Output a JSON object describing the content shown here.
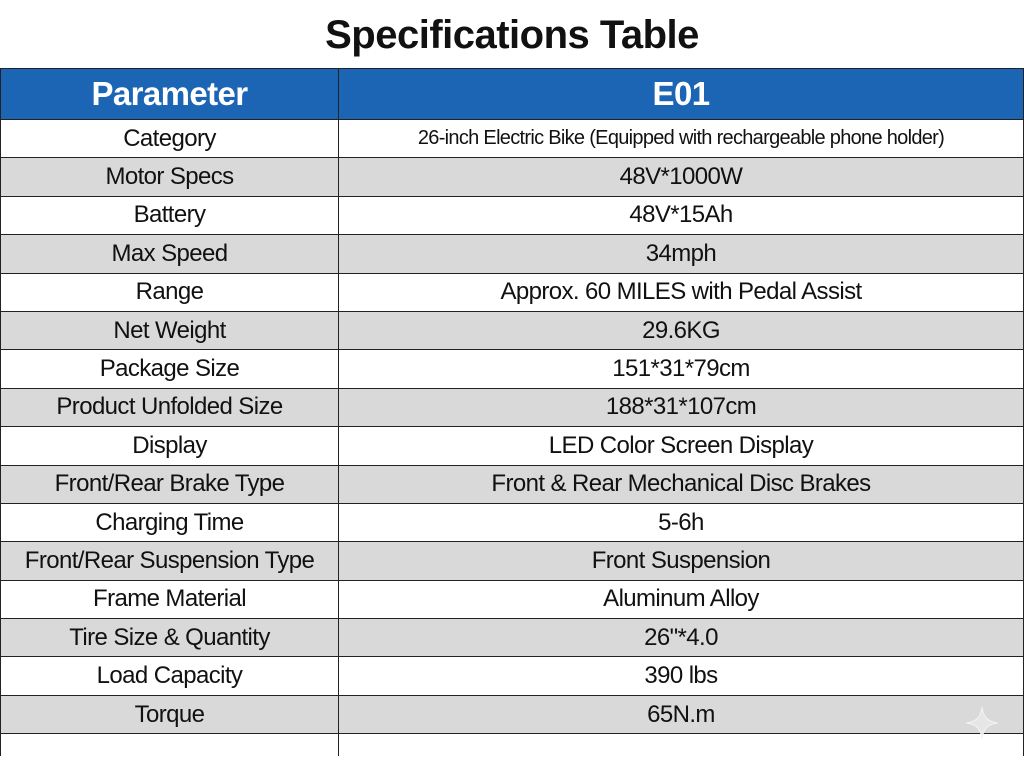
{
  "title": "Specifications Table",
  "table": {
    "header": [
      "Parameter",
      "E01"
    ],
    "rows": [
      [
        "Category",
        "26-inch Electric Bike (Equipped with rechargeable phone holder)"
      ],
      [
        "Motor Specs",
        "48V*1000W"
      ],
      [
        "Battery",
        "48V*15Ah"
      ],
      [
        "Max Speed",
        "34mph"
      ],
      [
        "Range",
        "Approx. 60 MILES with Pedal Assist"
      ],
      [
        "Net Weight",
        "29.6KG"
      ],
      [
        "Package Size",
        "151*31*79cm"
      ],
      [
        "Product Unfolded Size",
        "188*31*107cm"
      ],
      [
        "Display",
        "LED Color Screen Display"
      ],
      [
        "Front/Rear Brake Type",
        "Front & Rear Mechanical Disc Brakes"
      ],
      [
        "Charging Time",
        "5-6h"
      ],
      [
        "Front/Rear Suspension Type",
        "Front Suspension"
      ],
      [
        "Frame Material",
        "Aluminum Alloy"
      ],
      [
        "Tire Size & Quantity",
        "26\"*4.0"
      ],
      [
        "Load Capacity",
        "390 lbs"
      ],
      [
        "Torque",
        "65N.m"
      ]
    ]
  }
}
